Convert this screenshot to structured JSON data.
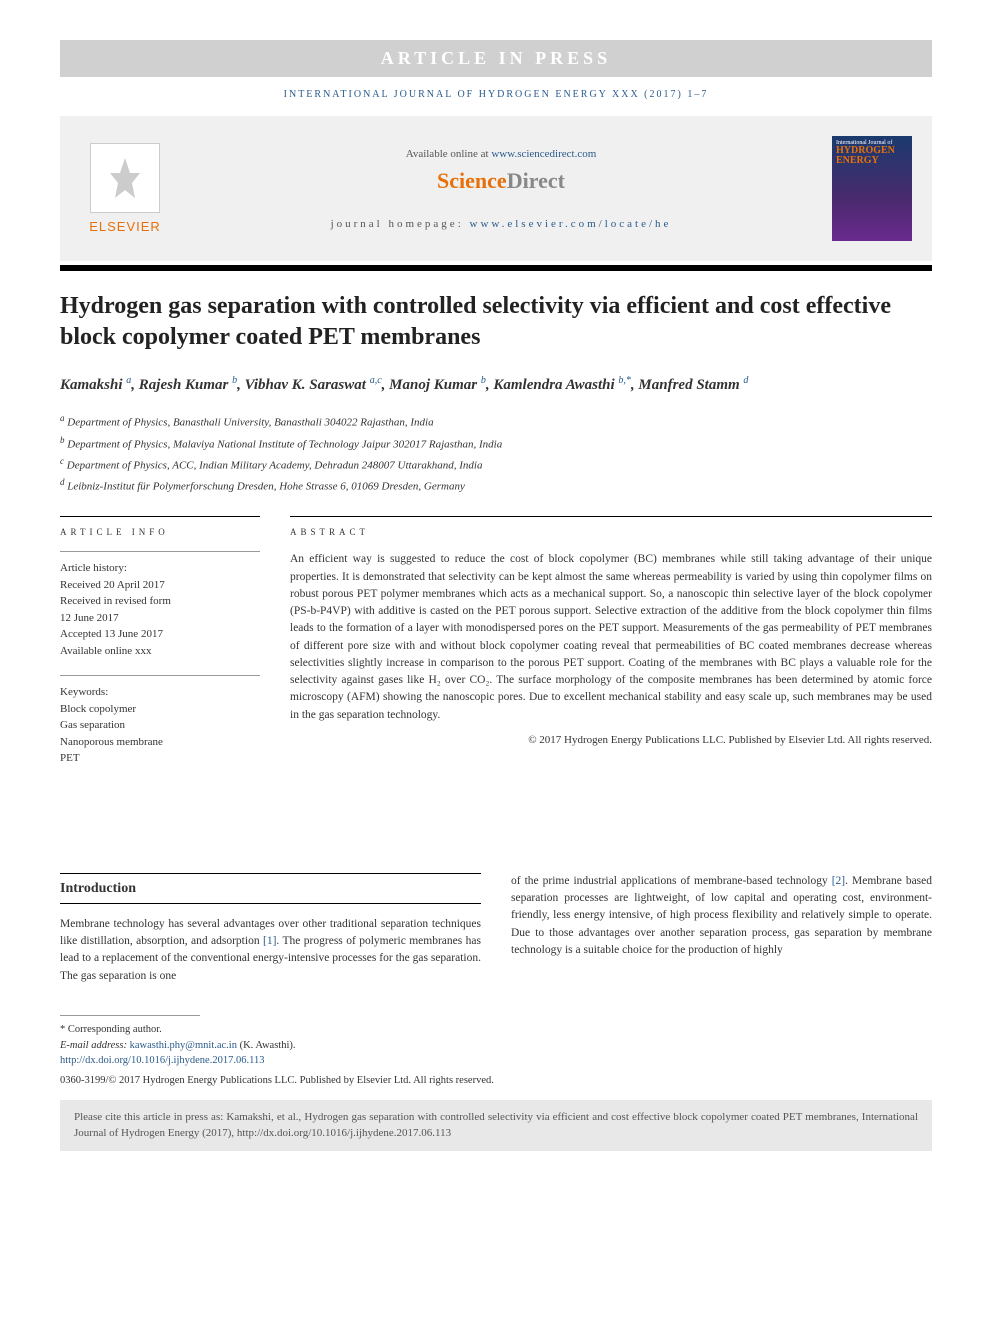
{
  "banner": "ARTICLE IN PRESS",
  "journalHeader": "INTERNATIONAL JOURNAL OF HYDROGEN ENERGY XXX (2017) 1–7",
  "availableText": "Available online at ",
  "availableLink": "www.sciencedirect.com",
  "scienceDirect1": "Science",
  "scienceDirect2": "Direct",
  "journalHomeLabel": "journal homepage: ",
  "journalHomeLink": "www.elsevier.com/locate/he",
  "elsevierText": "ELSEVIER",
  "coverLine1": "International Journal of",
  "coverLine2": "HYDROGEN",
  "coverLine3": "ENERGY",
  "title": "Hydrogen gas separation with controlled selectivity via efficient and cost effective block copolymer coated PET membranes",
  "authors": [
    {
      "name": "Kamakshi ",
      "affs": "a"
    },
    {
      "name": ", Rajesh Kumar ",
      "affs": "b"
    },
    {
      "name": ", Vibhav K. Saraswat ",
      "affs": "a,c"
    },
    {
      "name": ", Manoj Kumar ",
      "affs": "b"
    },
    {
      "name": ", Kamlendra Awasthi ",
      "affs": "b,*"
    },
    {
      "name": ", Manfred Stamm ",
      "affs": "d"
    }
  ],
  "affiliations": [
    {
      "sup": "a",
      "text": " Department of Physics, Banasthali University, Banasthali 304022 Rajasthan, India"
    },
    {
      "sup": "b",
      "text": " Department of Physics, Malaviya National Institute of Technology Jaipur 302017 Rajasthan, India"
    },
    {
      "sup": "c",
      "text": " Department of Physics, ACC, Indian Military Academy, Dehradun 248007 Uttarakhand, India"
    },
    {
      "sup": "d",
      "text": " Leibniz-Institut für Polymerforschung Dresden, Hohe Strasse 6, 01069 Dresden, Germany"
    }
  ],
  "articleInfoHeading": "ARTICLE INFO",
  "abstractHeading": "ABSTRACT",
  "historyLabel": "Article history:",
  "history": [
    "Received 20 April 2017",
    "Received in revised form",
    "12 June 2017",
    "Accepted 13 June 2017",
    "Available online xxx"
  ],
  "keywordsLabel": "Keywords:",
  "keywords": [
    "Block copolymer",
    "Gas separation",
    "Nanoporous membrane",
    "PET"
  ],
  "abstract": "An efficient way is suggested to reduce the cost of block copolymer (BC) membranes while still taking advantage of their unique properties. It is demonstrated that selectivity can be kept almost the same whereas permeability is varied by using thin copolymer films on robust porous PET polymer membranes which acts as a mechanical support. So, a nanoscopic thin selective layer of the block copolymer (PS-b-P4VP) with additive is casted on the PET porous support. Selective extraction of the additive from the block copolymer thin films leads to the formation of a layer with monodispersed pores on the PET support. Measurements of the gas permeability of PET membranes of different pore size with and without block copolymer coating reveal that permeabilities of BC coated membranes decrease whereas selectivities slightly increase in comparison to the porous PET support. Coating of the membranes with BC plays a valuable role for the selectivity against gases like H₂ over CO₂. The surface morphology of the composite membranes has been determined by atomic force microscopy (AFM) showing the nanoscopic pores. Due to excellent mechanical stability and easy scale up, such membranes may be used in the gas separation technology.",
  "abstractCopyright": "© 2017 Hydrogen Energy Publications LLC. Published by Elsevier Ltd. All rights reserved.",
  "introHeading": "Introduction",
  "introCol1": "Membrane technology has several advantages over other traditional separation techniques like distillation, absorption, and adsorption [1]. The progress of polymeric membranes has lead to a replacement of the conventional energy-intensive processes for the gas separation. The gas separation is one",
  "introCol2": "of the prime industrial applications of membrane-based technology [2]. Membrane based separation processes are lightweight, of low capital and operating cost, environment-friendly, less energy intensive, of high process flexibility and relatively simple to operate. Due to those advantages over another separation process, gas separation by membrane technology is a suitable choice for the production of highly",
  "ref1": "[1]",
  "ref2": "[2]",
  "correspAuthor": "* Corresponding author.",
  "emailLabel": "E-mail address: ",
  "email": "kawasthi.phy@mnit.ac.in",
  "emailSuffix": " (K. Awasthi).",
  "doi": "http://dx.doi.org/10.1016/j.ijhydene.2017.06.113",
  "issnLine": "0360-3199/© 2017 Hydrogen Energy Publications LLC. Published by Elsevier Ltd. All rights reserved.",
  "citeBox": "Please cite this article in press as: Kamakshi, et al., Hydrogen gas separation with controlled selectivity via efficient and cost effective block copolymer coated PET membranes, International Journal of Hydrogen Energy (2017), http://dx.doi.org/10.1016/j.ijhydene.2017.06.113"
}
